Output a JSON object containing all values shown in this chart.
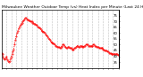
{
  "title": "Milwaukee Weather Outdoor Temp (vs) Heat Index per Minute (Last 24 Hours)",
  "line_color": "#ff0000",
  "background_color": "#ffffff",
  "plot_bg_color": "#ffffff",
  "grid_color": "#888888",
  "y_values": [
    43,
    42,
    40,
    38,
    37,
    38,
    40,
    37,
    36,
    35,
    36,
    38,
    40,
    42,
    44,
    46,
    50,
    54,
    57,
    60,
    62,
    64,
    66,
    67,
    68,
    69,
    70,
    71,
    72,
    73,
    73,
    72,
    72,
    71,
    71,
    70,
    70,
    70,
    69,
    69,
    68,
    68,
    67,
    67,
    66,
    65,
    65,
    64,
    63,
    62,
    62,
    61,
    61,
    60,
    59,
    58,
    57,
    56,
    55,
    54,
    53,
    52,
    52,
    51,
    51,
    50,
    49,
    49,
    48,
    48,
    48,
    47,
    47,
    48,
    49,
    50,
    50,
    49,
    48,
    47,
    47,
    48,
    48,
    47,
    47,
    47,
    46,
    46,
    46,
    47,
    47,
    48,
    49,
    49,
    48,
    48,
    49,
    49,
    49,
    48,
    48,
    49,
    49,
    50,
    50,
    50,
    49,
    49,
    49,
    49,
    49,
    49,
    50,
    50,
    49,
    49,
    48,
    48,
    48,
    47,
    47,
    47,
    47,
    47,
    46,
    46,
    45,
    45,
    45,
    44,
    44,
    43,
    43,
    43,
    42,
    42,
    42,
    42,
    42,
    42,
    42,
    42,
    41,
    41
  ],
  "ylim_min": 30,
  "ylim_max": 80,
  "ytick_values": [
    35,
    40,
    45,
    50,
    55,
    60,
    65,
    70,
    75
  ],
  "num_xticks": 24,
  "line_width": 0.6,
  "title_fontsize": 3.2,
  "tick_fontsize": 2.8,
  "figsize": [
    1.6,
    0.87
  ],
  "dpi": 100
}
